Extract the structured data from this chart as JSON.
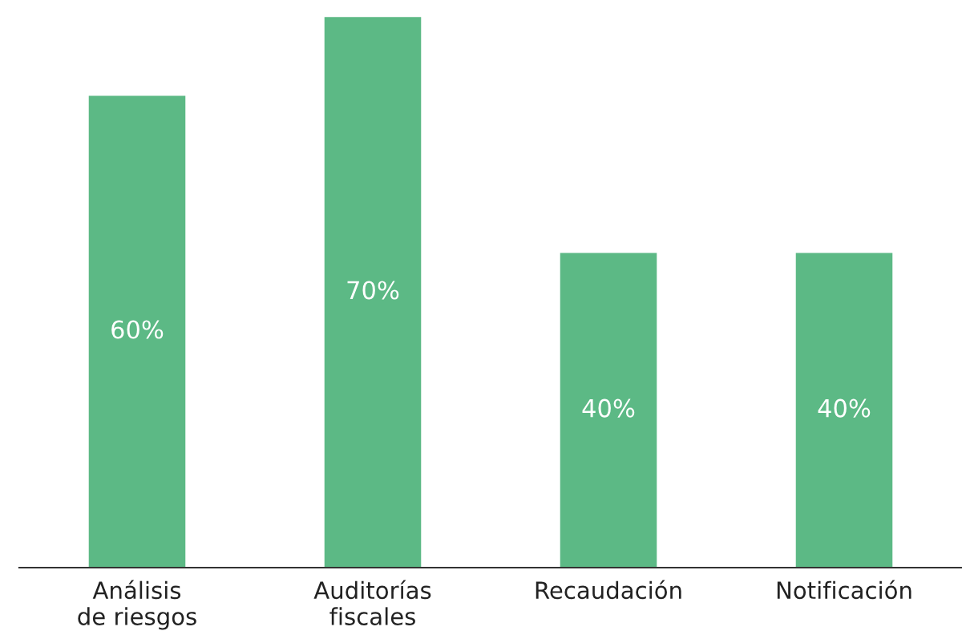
{
  "chart_data": {
    "type": "bar",
    "categories": [
      "Análisis\nde riesgos",
      "Auditorías\nfiscales",
      "Recaudación",
      "Notificación"
    ],
    "values": [
      60,
      70,
      40,
      40
    ],
    "value_labels": [
      "60%",
      "70%",
      "40%",
      "40%"
    ],
    "color": "#5cb985",
    "grid": false,
    "legend": false
  }
}
